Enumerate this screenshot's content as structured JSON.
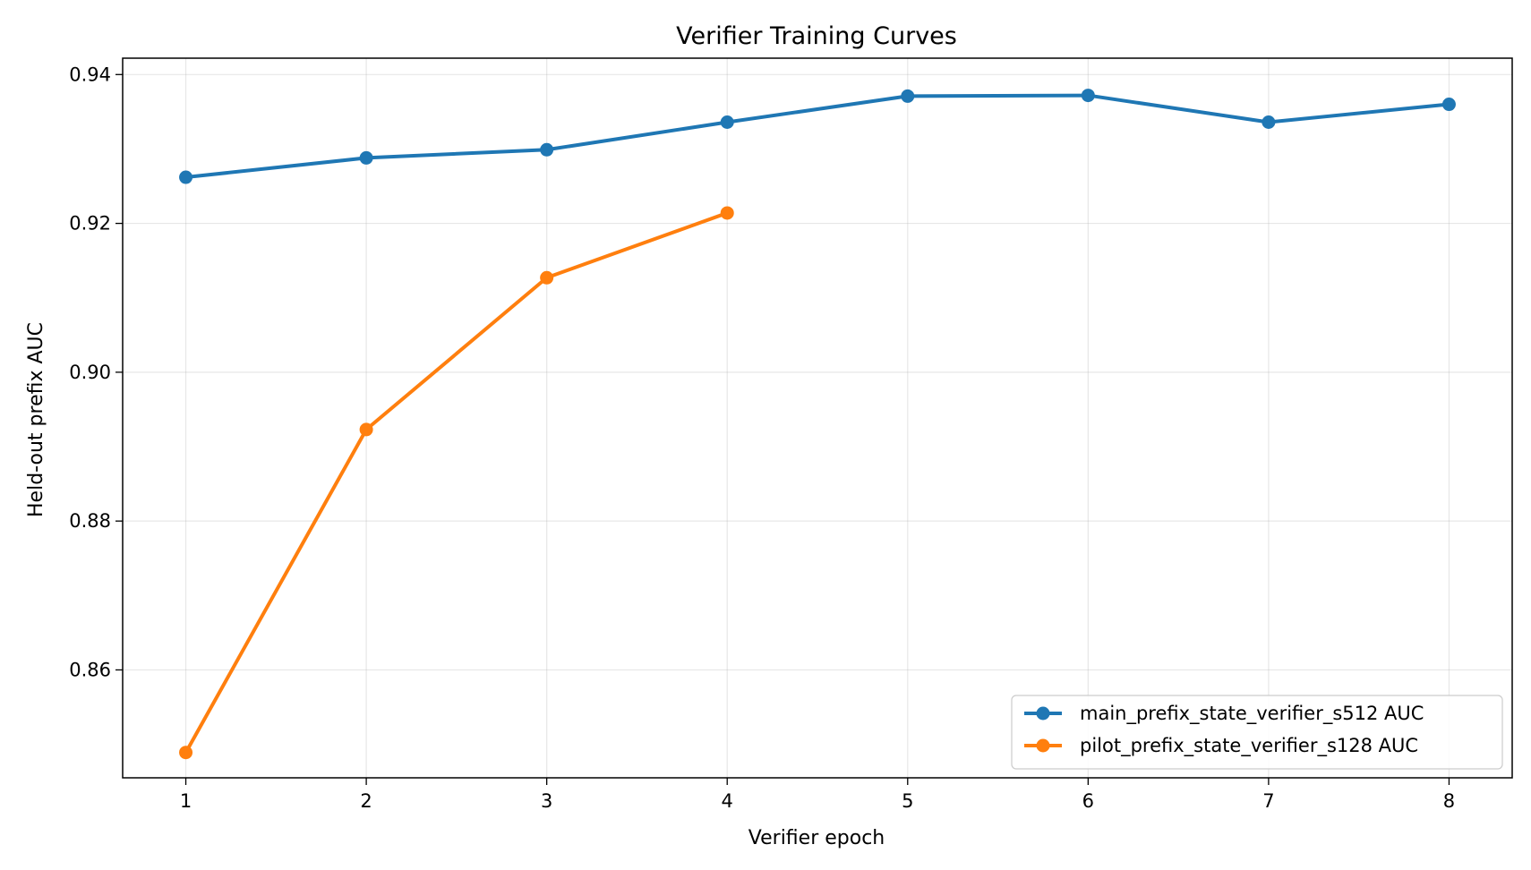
{
  "chart_data": {
    "type": "line",
    "title": "Verifier Training Curves",
    "xlabel": "Verifier epoch",
    "ylabel": "Held-out prefix AUC",
    "x": [
      1,
      2,
      3,
      4,
      5,
      6,
      7,
      8
    ],
    "xlim": [
      0.65,
      8.35
    ],
    "ylim": [
      0.8455,
      0.9422
    ],
    "xticks": [
      1,
      2,
      3,
      4,
      5,
      6,
      7,
      8
    ],
    "yticks": [
      0.86,
      0.88,
      0.9,
      0.92,
      0.94
    ],
    "ytick_labels": [
      "0.86",
      "0.88",
      "0.90",
      "0.92",
      "0.94"
    ],
    "grid": true,
    "legend_position": "lower-right",
    "series": [
      {
        "name": "main_prefix_state_verifier_s512 AUC",
        "color": "#1f77b4",
        "x": [
          1,
          2,
          3,
          4,
          5,
          6,
          7,
          8
        ],
        "values": [
          0.9262,
          0.9288,
          0.9299,
          0.9336,
          0.9371,
          0.9372,
          0.9336,
          0.936
        ]
      },
      {
        "name": "pilot_prefix_state_verifier_s128 AUC",
        "color": "#ff7f0e",
        "x": [
          1,
          2,
          3,
          4
        ],
        "values": [
          0.8489,
          0.8923,
          0.9127,
          0.9214
        ]
      }
    ]
  }
}
